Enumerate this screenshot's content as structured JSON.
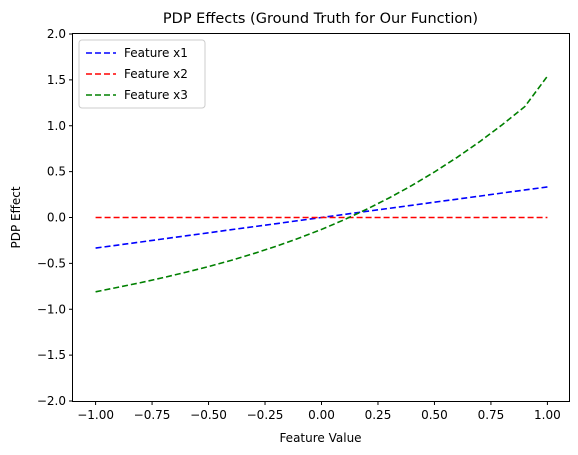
{
  "chart_data": {
    "type": "line",
    "title": "PDP Effects (Ground Truth for Our Function)",
    "xlabel": "Feature Value",
    "ylabel": "PDP Effect",
    "xlim": [
      -1.1,
      1.1
    ],
    "ylim": [
      -2.0,
      2.0
    ],
    "xticks": [
      -1.0,
      -0.75,
      -0.5,
      -0.25,
      0.0,
      0.25,
      0.5,
      0.75,
      1.0
    ],
    "xtick_labels": [
      "−1.00",
      "−0.75",
      "−0.50",
      "−0.25",
      "0.00",
      "0.25",
      "0.50",
      "0.75",
      "1.00"
    ],
    "yticks": [
      -2.0,
      -1.5,
      -1.0,
      -0.5,
      0.0,
      0.5,
      1.0,
      1.5,
      2.0
    ],
    "ytick_labels": [
      "−2.0",
      "−1.5",
      "−1.0",
      "−0.5",
      "0.0",
      "0.5",
      "1.0",
      "1.5",
      "2.0"
    ],
    "grid": false,
    "legend_position": "top-left",
    "x": [
      -1.0,
      -0.9,
      -0.8,
      -0.7,
      -0.6,
      -0.5,
      -0.4,
      -0.3,
      -0.2,
      -0.1,
      0.0,
      0.1,
      0.2,
      0.3,
      0.4,
      0.5,
      0.6,
      0.7,
      0.8,
      0.9,
      1.0
    ],
    "series": [
      {
        "name": "Feature x1",
        "color": "#0000ff",
        "values": [
          -0.333,
          -0.3,
          -0.267,
          -0.233,
          -0.2,
          -0.167,
          -0.133,
          -0.1,
          -0.067,
          -0.033,
          0.0,
          0.033,
          0.067,
          0.1,
          0.133,
          0.167,
          0.2,
          0.233,
          0.267,
          0.3,
          0.333
        ]
      },
      {
        "name": "Feature x2",
        "color": "#ff0000",
        "values": [
          0.0,
          0.0,
          0.0,
          0.0,
          0.0,
          0.0,
          0.0,
          0.0,
          0.0,
          0.0,
          0.0,
          0.0,
          0.0,
          0.0,
          0.0,
          0.0,
          0.0,
          0.0,
          0.0,
          0.0,
          0.0
        ]
      },
      {
        "name": "Feature x3",
        "color": "#008000",
        "values": [
          -0.81,
          -0.76,
          -0.71,
          -0.655,
          -0.597,
          -0.535,
          -0.467,
          -0.393,
          -0.313,
          -0.225,
          -0.13,
          -0.025,
          0.09,
          0.214,
          0.349,
          0.496,
          0.655,
          0.826,
          1.011,
          1.209,
          1.54
        ]
      }
    ]
  }
}
